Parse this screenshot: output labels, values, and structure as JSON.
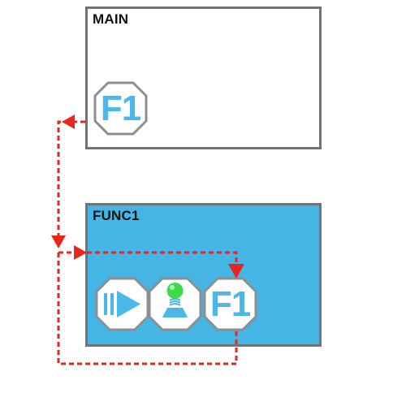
{
  "main_panel": {
    "title": "MAIN",
    "function_tile": {
      "label": "F1",
      "icon": "f1-function-tile"
    }
  },
  "func_panel": {
    "title": "FUNC1",
    "tiles": [
      {
        "icon": "play-forward-icon"
      },
      {
        "icon": "joystick-icon"
      },
      {
        "label": "F1",
        "icon": "f1-function-tile"
      }
    ]
  },
  "colors": {
    "func_panel_bg": "#45b5e6",
    "tile_text": "#4cb8e8",
    "tile_border": "#8a8f93",
    "flow_arrow": "#e8261e",
    "joystick_ball": "#3ddb4c"
  }
}
